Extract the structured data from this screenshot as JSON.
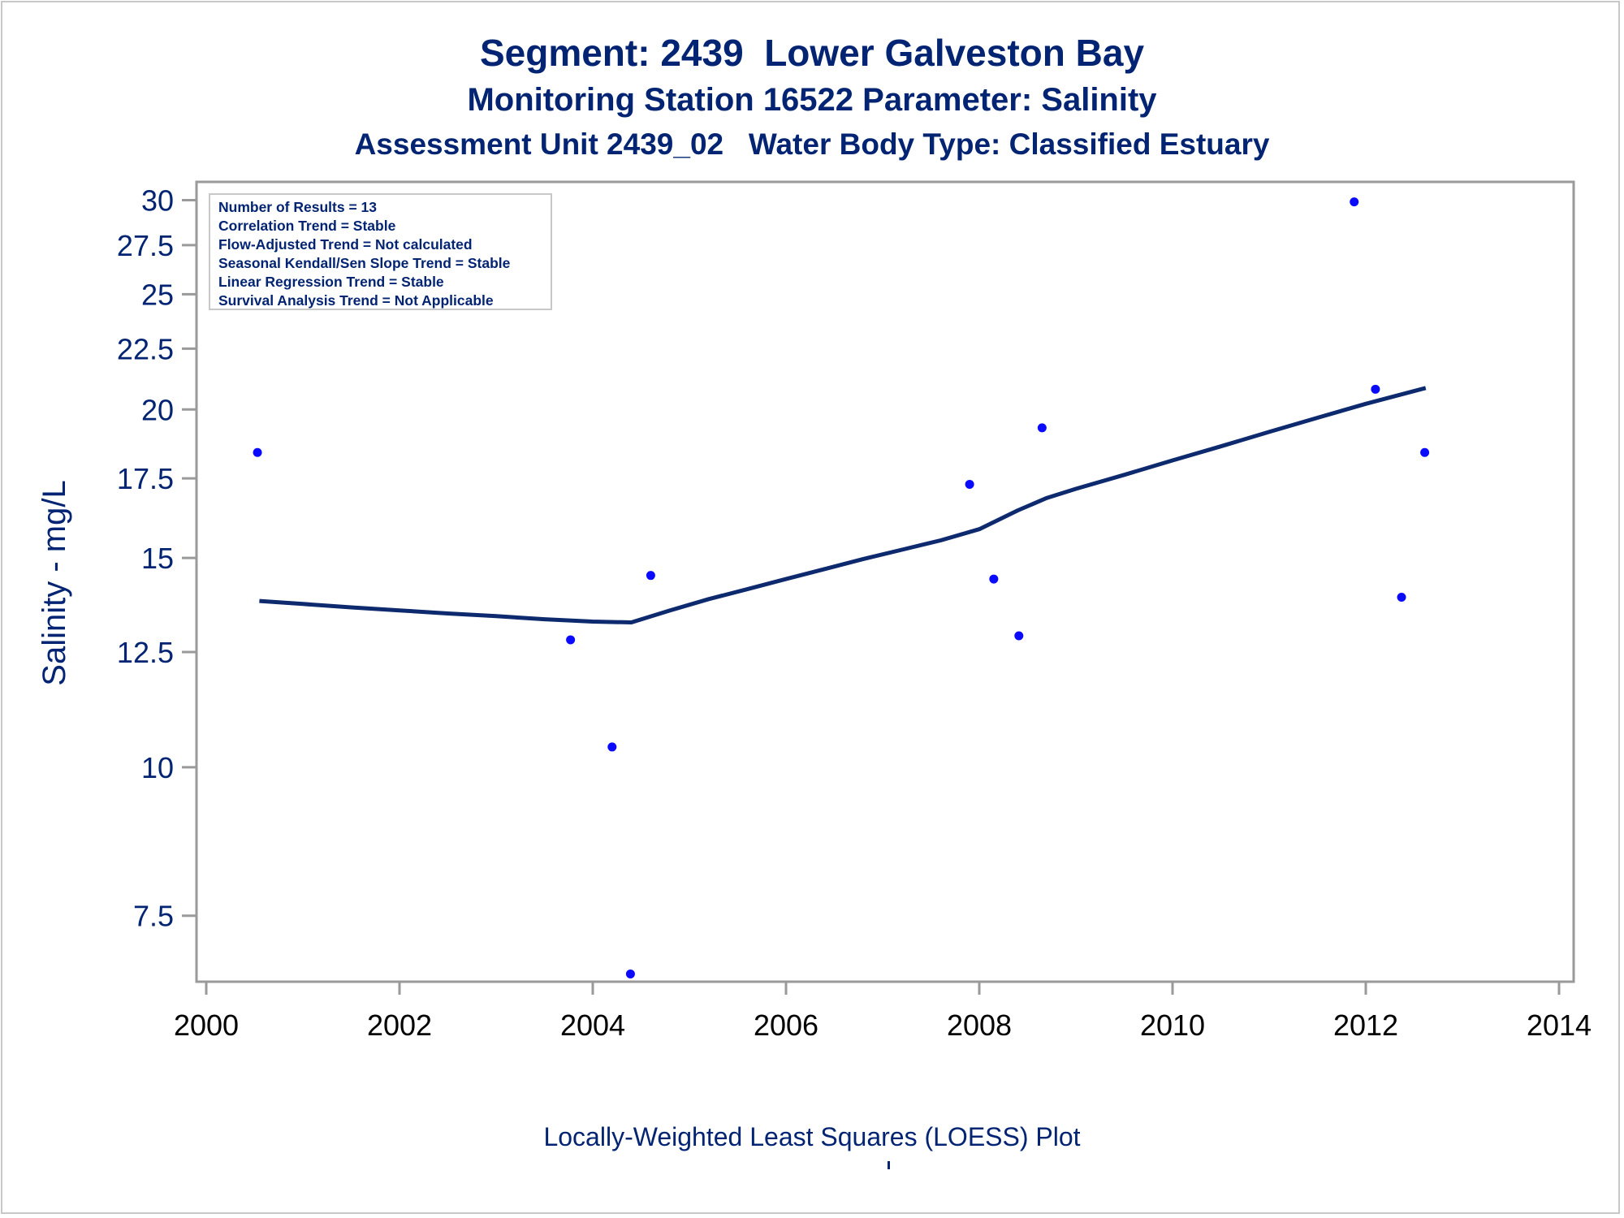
{
  "titles": {
    "title": "Segment: 2439  Lower Galveston Bay",
    "subtitle1": "Monitoring Station 16522 Parameter: Salinity",
    "subtitle2": "Assessment Unit 2439_02   Water Body Type: Classified Estuary"
  },
  "footnote": "Locally-Weighted Least Squares (LOESS) Plot",
  "colors": {
    "text": "#032472",
    "points": "#0a0aff",
    "loess_line": "#0e2a6e",
    "axis": "#9a9a9a",
    "frame": "#c8c8c8"
  },
  "chart_data": {
    "type": "scatter",
    "ylabel": "Salinity - mg/L",
    "xlabel": "",
    "yscale": "log",
    "xlim": [
      2000,
      2014
    ],
    "ylim": [
      6.6,
      30.5
    ],
    "x_ticks": [
      "2000",
      "2002",
      "2004",
      "2006",
      "2008",
      "2010",
      "2012",
      "2014"
    ],
    "y_ticks": [
      "7.5",
      "10",
      "12.5",
      "15",
      "17.5",
      "20",
      "22.5",
      "25",
      "27.5",
      "30"
    ],
    "grid": false,
    "legend": "none",
    "stats_box": [
      "Number of Results = 13",
      "Correlation Trend = Stable",
      "Flow-Adjusted Trend = Not calculated",
      "Seasonal Kendall/Sen Slope Trend = Stable",
      "Linear Regression Trend = Stable",
      "Survival Analysis Trend = Not Applicable"
    ],
    "series": [
      {
        "type": "scatter",
        "x": [
          2000.53,
          2003.77,
          2004.2,
          2004.39,
          2004.6,
          2007.9,
          2008.15,
          2008.41,
          2008.65,
          2011.88,
          2012.1,
          2012.37,
          2012.61
        ],
        "y": [
          18.4,
          12.8,
          10.4,
          6.7,
          14.5,
          17.3,
          14.4,
          12.9,
          19.3,
          29.9,
          20.8,
          13.9,
          18.4
        ]
      },
      {
        "type": "line",
        "x": [
          2000.55,
          2001,
          2001.5,
          2002,
          2002.5,
          2003,
          2003.5,
          2004,
          2004.4,
          2004.8,
          2005.2,
          2005.6,
          2006,
          2006.4,
          2006.8,
          2007.2,
          2007.6,
          2008,
          2008.4,
          2008.7,
          2009,
          2009.5,
          2010,
          2010.5,
          2011,
          2011.5,
          2012,
          2012.62
        ],
        "y": [
          13.8,
          13.72,
          13.63,
          13.55,
          13.47,
          13.4,
          13.32,
          13.26,
          13.24,
          13.55,
          13.85,
          14.12,
          14.4,
          14.68,
          14.97,
          15.24,
          15.52,
          15.86,
          16.45,
          16.85,
          17.15,
          17.62,
          18.12,
          18.62,
          19.15,
          19.68,
          20.22,
          20.85
        ]
      }
    ]
  }
}
